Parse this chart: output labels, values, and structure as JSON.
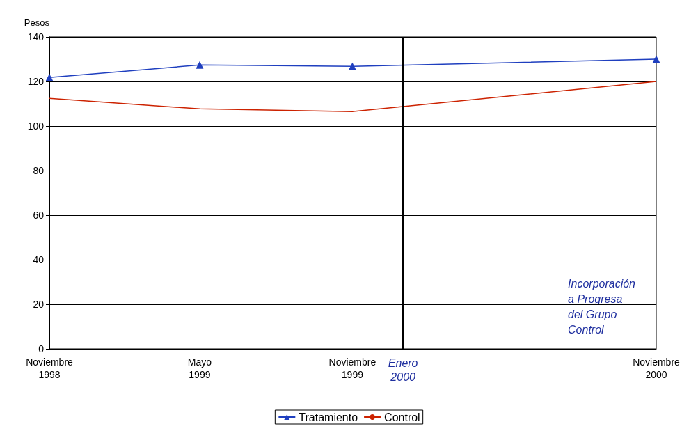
{
  "chart_data": {
    "type": "line",
    "ylabel": "Pesos",
    "x": [
      "1998-11",
      "1999-05",
      "1999-11",
      "2000-11"
    ],
    "series": [
      {
        "name": "Tratamiento",
        "color": "#1f3fbf",
        "marker": "triangle",
        "values": [
          121.8,
          127.4,
          126.8,
          130.0
        ]
      },
      {
        "name": "Control",
        "color": "#cc2200",
        "marker": "none",
        "values": [
          112.4,
          107.7,
          106.5,
          120.0
        ]
      }
    ],
    "xlim": [
      "1998-11",
      "2000-11"
    ],
    "xticks": [
      {
        "value": "1998-11",
        "label": "Noviembre\n1998"
      },
      {
        "value": "1999-05",
        "label": "Mayo\n1999"
      },
      {
        "value": "1999-11",
        "label": "Noviembre\n1999"
      },
      {
        "value": "2000-11",
        "label": "Noviembre\n2000"
      }
    ],
    "ylim": [
      0,
      140
    ],
    "yticks": [
      0,
      20,
      40,
      60,
      80,
      100,
      120,
      140
    ],
    "grid": "y",
    "legend": "bottom",
    "ref_lines": [
      {
        "axis": "x",
        "value": "2000-01",
        "label": "Enero\n2000",
        "color": "#000000"
      }
    ],
    "annotations": [
      "Incorporación\na Progresa\ndel Grupo\nControl"
    ]
  }
}
